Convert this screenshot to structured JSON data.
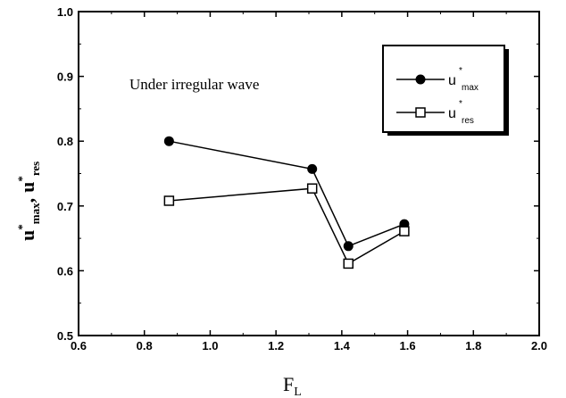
{
  "chart_data": {
    "type": "line",
    "annotation": "Under irregular wave",
    "xlabel": {
      "main": "F",
      "sub": "L"
    },
    "ylabel": {
      "var1": "u",
      "sup1": "*",
      "sub1": "max",
      "sep": ",",
      "var2": "u",
      "sup2": "*",
      "sub2": "res"
    },
    "xlim": [
      0.6,
      2.0
    ],
    "ylim": [
      0.5,
      1.0
    ],
    "xticks": [
      "0.6",
      "0.8",
      "1.0",
      "1.2",
      "1.4",
      "1.6",
      "1.8",
      "2.0"
    ],
    "yticks": [
      "0.5",
      "0.6",
      "0.7",
      "0.8",
      "0.9",
      "1.0"
    ],
    "grid": false,
    "legend_position": "top-right",
    "series": [
      {
        "var": "u",
        "sup": "*",
        "sub": "max",
        "marker": "filled-circle",
        "x": [
          0.875,
          1.31,
          1.42,
          1.59
        ],
        "y": [
          0.8,
          0.757,
          0.638,
          0.672
        ]
      },
      {
        "var": "u",
        "sup": "*",
        "sub": "res",
        "marker": "open-square",
        "x": [
          0.875,
          1.31,
          1.42,
          1.59
        ],
        "y": [
          0.708,
          0.727,
          0.611,
          0.661
        ]
      }
    ]
  }
}
